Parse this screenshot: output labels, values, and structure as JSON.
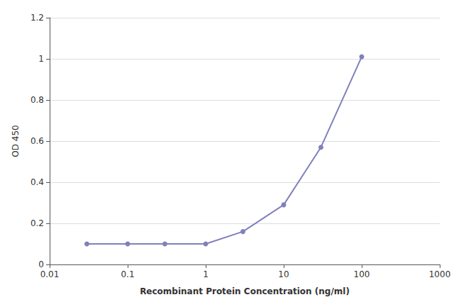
{
  "chart_data": {
    "type": "line",
    "xlabel": "Recombinant Protein Concentration (ng/ml)",
    "ylabel": "OD 450",
    "x": [
      0.03,
      0.1,
      0.3,
      1.0,
      3.0,
      10.0,
      30.0,
      100.0
    ],
    "values": [
      0.1,
      0.1,
      0.1,
      0.1,
      0.16,
      0.29,
      0.57,
      1.01
    ],
    "color": "#8080bb",
    "marker": "circle",
    "log": "x",
    "grid": "y",
    "xlim": [
      0.01,
      1000
    ],
    "ylim": [
      0,
      1.2
    ],
    "xticks": [
      0.01,
      0.1,
      1,
      10,
      100,
      1000
    ],
    "yticks": [
      0,
      0.2,
      0.4,
      0.6,
      0.8,
      1.0,
      1.2
    ]
  }
}
